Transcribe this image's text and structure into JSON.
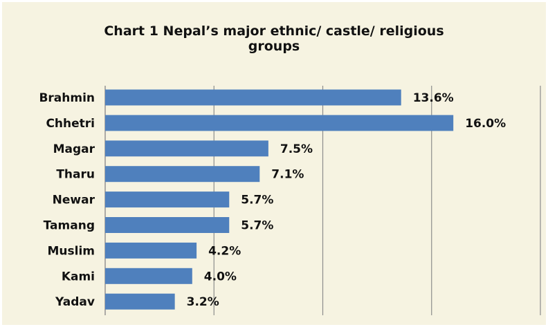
{
  "colors": {
    "background": "#f6f3e1",
    "bar": "#4f80bd",
    "grid": "#8c8c8c"
  },
  "chart_data": {
    "type": "bar",
    "orientation": "horizontal",
    "title_lines": [
      "Chart 1 Nepal’s major ethnic/ castle/ religious",
      "groups"
    ],
    "categories": [
      "Brahmin",
      "Chhetri",
      "Magar",
      "Tharu",
      "Newar",
      "Tamang",
      "Muslim",
      "Kami",
      "Yadav"
    ],
    "values": [
      13.6,
      16.0,
      7.5,
      7.1,
      5.7,
      5.7,
      4.2,
      4.0,
      3.2
    ],
    "value_labels": [
      "13.6%",
      "16.0%",
      "7.5%",
      "7.1%",
      "5.7%",
      "5.7%",
      "4.2%",
      "4.0%",
      "3.2%"
    ],
    "xlim": [
      0,
      20
    ],
    "grid": true,
    "grid_interval": 5,
    "legend": "none"
  }
}
